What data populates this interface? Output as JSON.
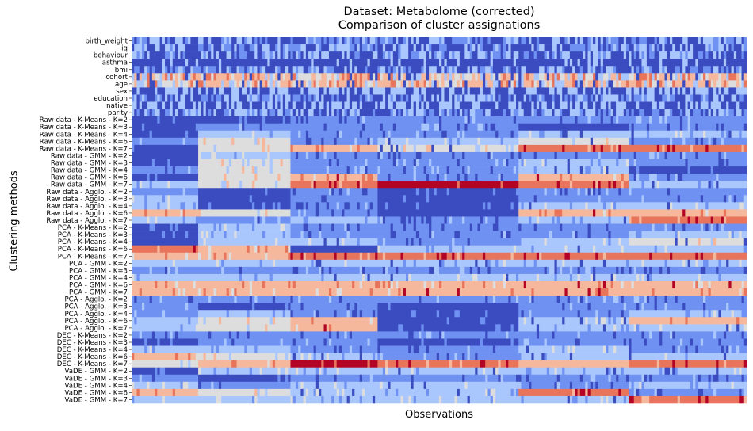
{
  "chart_data": {
    "type": "heatmap",
    "title": "Dataset: Metabolome (corrected)",
    "subtitle": "Comparison of cluster assignations",
    "xlabel": "Observations",
    "ylabel": "Clustering methods",
    "colormap": "coolwarm",
    "colors": {
      "low": "#3b4cc0",
      "low_mid": "#6f91f2",
      "mid_low": "#aac7fd",
      "mid": "#dddddd",
      "mid_high": "#f6b89c",
      "high_mid": "#e7745b",
      "high": "#b40426"
    },
    "x_ticks_shown": false,
    "rows": [
      "birth_weight",
      "iq",
      "behaviour",
      "asthma",
      "bmi",
      "cohort",
      "age",
      "sex",
      "education",
      "native",
      "parity",
      "Raw data - K-Means - K=2",
      "Raw data - K-Means - K=3",
      "Raw data - K-Means - K=4",
      "Raw data - K-Means - K=6",
      "Raw data - K-Means - K=7",
      "Raw data - GMM - K=2",
      "Raw data - GMM - K=3",
      "Raw data - GMM - K=4",
      "Raw data - GMM - K=6",
      "Raw data - GMM - K=7",
      "Raw data - Agglo. - K=2",
      "Raw data - Agglo. - K=3",
      "Raw data - Agglo. - K=4",
      "Raw data - Agglo. - K=6",
      "Raw data - Agglo. - K=7",
      "PCA - K-Means - K=2",
      "PCA - K-Means - K=3",
      "PCA - K-Means - K=4",
      "PCA - K-Means - K=6",
      "PCA - K-Means - K=7",
      "PCA - GMM - K=2",
      "PCA - GMM - K=3",
      "PCA - GMM - K=4",
      "PCA - GMM - K=6",
      "PCA - GMM - K=7",
      "PCA - Agglo. - K=2",
      "PCA - Agglo. - K=3",
      "PCA - Agglo. - K=4",
      "PCA - Agglo. - K=6",
      "PCA - Agglo. - K=7",
      "DEC - K-Means - K=2",
      "DEC - K-Means - K=3",
      "DEC - K-Means - K=4",
      "DEC - K-Means - K=6",
      "DEC - K-Means - K=7",
      "VaDE - GMM - K=2",
      "VaDE - GMM - K=3",
      "VaDE - GMM - K=4",
      "VaDE - GMM - K=6",
      "VaDE - GMM - K=7"
    ],
    "segments": [
      {
        "rows": [
          "birth_weight",
          "iq",
          "behaviour",
          "asthma",
          "bmi",
          "cohort",
          "age",
          "sex",
          "education",
          "native",
          "parity"
        ],
        "note": "noisy striped columns across all observations"
      },
      {
        "row": "Raw data - K-Means - K=2",
        "blocks": [
          [
            0,
            0.11,
            "low"
          ],
          [
            0.11,
            0.26,
            "low_mid"
          ],
          [
            0.26,
            0.63,
            "low_mid"
          ],
          [
            0.63,
            1,
            "low"
          ]
        ]
      },
      {
        "row": "Raw data - K-Means - K=7",
        "blocks": [
          [
            0,
            0.11,
            "low"
          ],
          [
            0.11,
            0.26,
            "mid"
          ],
          [
            0.26,
            0.4,
            "mid_high"
          ],
          [
            0.4,
            0.63,
            "mid"
          ],
          [
            0.63,
            0.81,
            "high_mid"
          ],
          [
            0.81,
            1,
            "high_mid"
          ]
        ]
      },
      {
        "row": "PCA - K-Means - K=7",
        "blocks": [
          [
            0,
            0.11,
            "mid_high"
          ],
          [
            0.11,
            0.26,
            "mid_high"
          ],
          [
            0.26,
            0.4,
            "high_mid"
          ],
          [
            0.4,
            1,
            "high_mid"
          ]
        ]
      },
      {
        "row": "VaDE - GMM - K=7",
        "blocks": [
          [
            0,
            0.11,
            "mid_low"
          ],
          [
            0.11,
            0.26,
            "mid_low"
          ],
          [
            0.26,
            0.63,
            "mid_low"
          ],
          [
            0.63,
            0.81,
            "mid_low"
          ],
          [
            0.81,
            1,
            "high_mid"
          ]
        ]
      }
    ]
  }
}
